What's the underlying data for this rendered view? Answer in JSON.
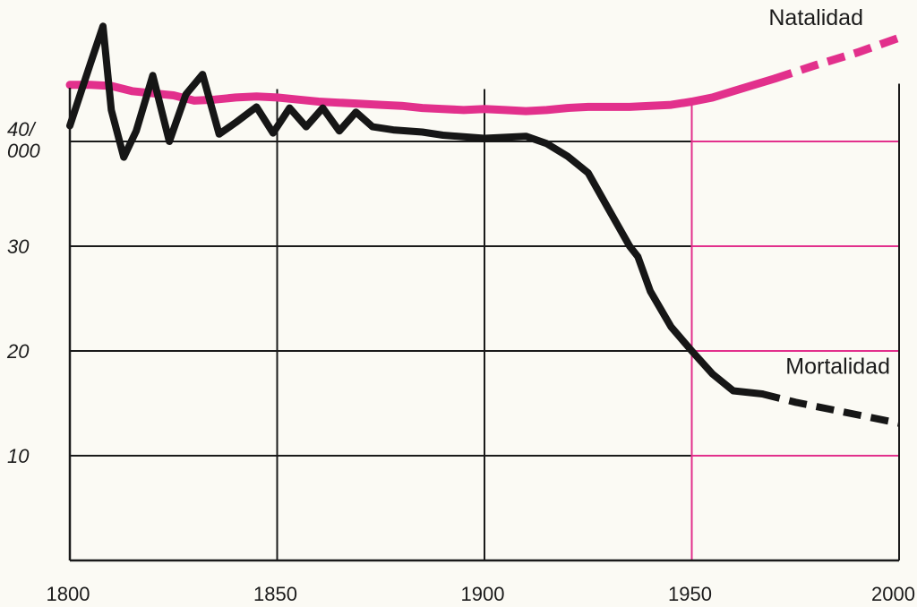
{
  "chart_data": {
    "type": "line",
    "title": "",
    "xlabel": "",
    "ylabel": "",
    "xlim": [
      1800,
      2000
    ],
    "ylim": [
      0,
      45
    ],
    "x_ticks": [
      1800,
      1850,
      1900,
      1950,
      2000
    ],
    "x_tick_labels": [
      "1800",
      "1850",
      "1900",
      "1950",
      "2000"
    ],
    "y_ticks": [
      10,
      20,
      30,
      40
    ],
    "y_tick_labels": [
      "10",
      "20",
      "30",
      "40/\n000"
    ],
    "grid": true,
    "series": [
      {
        "name": "Natalidad",
        "color": "#e2308c",
        "x": [
          1800,
          1805,
          1810,
          1815,
          1820,
          1825,
          1830,
          1835,
          1840,
          1845,
          1850,
          1855,
          1860,
          1865,
          1870,
          1875,
          1880,
          1885,
          1890,
          1895,
          1900,
          1905,
          1910,
          1915,
          1920,
          1925,
          1930,
          1935,
          1940,
          1945,
          1950,
          1955,
          1960,
          1965,
          1970
        ],
        "y": [
          45.4,
          45.4,
          45.3,
          44.8,
          44.6,
          44.4,
          43.9,
          44.0,
          44.2,
          44.3,
          44.2,
          44.0,
          43.8,
          43.7,
          43.6,
          43.5,
          43.4,
          43.2,
          43.1,
          43.0,
          43.1,
          43.0,
          42.9,
          43.0,
          43.2,
          43.3,
          43.3,
          43.3,
          43.4,
          43.5,
          43.8,
          44.2,
          44.8,
          45.4,
          46.0
        ],
        "projected": {
          "x": [
            1970,
            1980,
            1990,
            2000
          ],
          "y": [
            46.0,
            47.3,
            48.5,
            49.9
          ]
        }
      },
      {
        "name": "Mortalidad",
        "color": "#161616",
        "x": [
          1800,
          1805,
          1808,
          1810,
          1813,
          1816,
          1820,
          1824,
          1828,
          1832,
          1836,
          1840,
          1845,
          1849,
          1853,
          1857,
          1861,
          1865,
          1869,
          1873,
          1878,
          1885,
          1890,
          1900,
          1910,
          1915,
          1920,
          1925,
          1930,
          1935,
          1937,
          1940,
          1945,
          1950,
          1955,
          1960,
          1967
        ],
        "y": [
          41.5,
          47.5,
          51.0,
          43.0,
          38.5,
          41.0,
          46.3,
          40.0,
          44.5,
          46.4,
          40.7,
          41.8,
          43.3,
          40.8,
          43.2,
          41.4,
          43.2,
          41.0,
          42.8,
          41.4,
          41.1,
          40.9,
          40.6,
          40.3,
          40.5,
          39.8,
          38.6,
          37.0,
          33.5,
          30.0,
          29.0,
          25.7,
          22.3,
          20.0,
          17.8,
          16.2,
          15.9
        ],
        "projected": {
          "x": [
            1967,
            1975,
            1985,
            2000
          ],
          "y": [
            15.9,
            15.1,
            14.3,
            13.1
          ]
        }
      }
    ]
  }
}
